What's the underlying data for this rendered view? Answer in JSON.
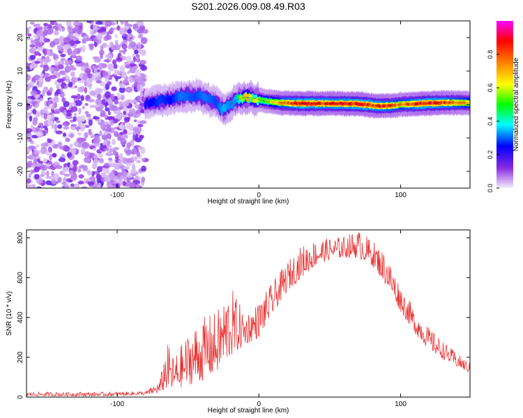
{
  "title": "S201.2026.009.08.49.R03",
  "chart_data": [
    {
      "type": "heatmap",
      "xlabel": "Height of straight line (km)",
      "ylabel": "Frequency (Hz)",
      "xlim": [
        -164,
        149
      ],
      "ylim": [
        -25,
        25
      ],
      "xticks": [
        "-100",
        "0",
        "100"
      ],
      "yticks": [
        "-20",
        "-10",
        "0",
        "10",
        "20"
      ],
      "colorbar": {
        "label": "Normalized spectral amplitude",
        "ticks": [
          "0.0",
          "0.2",
          "0.4",
          "0.6",
          "0.8"
        ],
        "range": [
          0,
          1
        ],
        "colors": [
          "#e0d0f8",
          "#8a2be2",
          "#0000ff",
          "#00ffff",
          "#00ff00",
          "#ffff00",
          "#ff8000",
          "#ff0000",
          "#ff00ff"
        ]
      },
      "noise_region": {
        "x": [
          -164,
          -80
        ],
        "y": [
          -25,
          25
        ],
        "amplitude": [
          0.0,
          0.25
        ]
      },
      "ridge": [
        {
          "x": -80,
          "y": 0.5,
          "a": 0.35
        },
        {
          "x": -70,
          "y": 1.0,
          "a": 0.45
        },
        {
          "x": -62,
          "y": 1.8,
          "a": 0.4
        },
        {
          "x": -55,
          "y": 2.5,
          "a": 0.5
        },
        {
          "x": -45,
          "y": 2.8,
          "a": 0.45
        },
        {
          "x": -38,
          "y": 2.0,
          "a": 0.5
        },
        {
          "x": -30,
          "y": 0.5,
          "a": 0.45
        },
        {
          "x": -25,
          "y": -1.5,
          "a": 0.55
        },
        {
          "x": -20,
          "y": 0.0,
          "a": 0.5
        },
        {
          "x": -15,
          "y": 1.5,
          "a": 0.55
        },
        {
          "x": -10,
          "y": 2.2,
          "a": 0.7
        },
        {
          "x": -5,
          "y": 2.0,
          "a": 0.65
        },
        {
          "x": 0,
          "y": 1.5,
          "a": 0.6
        },
        {
          "x": 5,
          "y": 1.0,
          "a": 0.55
        },
        {
          "x": 15,
          "y": 0.5,
          "a": 0.75
        },
        {
          "x": 30,
          "y": 0.3,
          "a": 0.9
        },
        {
          "x": 50,
          "y": 0.3,
          "a": 0.85
        },
        {
          "x": 70,
          "y": 0.2,
          "a": 0.9
        },
        {
          "x": 85,
          "y": -0.5,
          "a": 0.85
        },
        {
          "x": 95,
          "y": -0.3,
          "a": 0.8
        },
        {
          "x": 100,
          "y": 0.0,
          "a": 0.75
        },
        {
          "x": 115,
          "y": 0.3,
          "a": 0.9
        },
        {
          "x": 130,
          "y": 0.5,
          "a": 0.85
        },
        {
          "x": 149,
          "y": 0.5,
          "a": 0.7
        }
      ]
    },
    {
      "type": "line",
      "xlabel": "Height of straight line (km)",
      "ylabel": "SNR (10 * v/v)",
      "xlim": [
        -164,
        149
      ],
      "ylim": [
        0,
        840
      ],
      "xticks": [
        "-100",
        "0",
        "100"
      ],
      "yticks": [
        "0",
        "200",
        "400",
        "600",
        "800"
      ],
      "series": [
        {
          "color": "#e83030",
          "envelope": {
            "x": [
              -164,
              -140,
              -110,
              -80,
              -70,
              -65,
              -60,
              -50,
              -40,
              -30,
              -20,
              -10,
              0,
              10,
              20,
              30,
              40,
              50,
              60,
              70,
              80,
              90,
              100,
              110,
              120,
              130,
              140,
              149
            ],
            "min": [
              5,
              5,
              5,
              10,
              20,
              40,
              30,
              60,
              80,
              120,
              200,
              260,
              300,
              420,
              530,
              600,
              660,
              690,
              700,
              700,
              660,
              560,
              430,
              320,
              240,
              190,
              150,
              120
            ],
            "max": [
              25,
              25,
              25,
              30,
              80,
              280,
              200,
              320,
              400,
              430,
              560,
              420,
              480,
              580,
              680,
              760,
              790,
              800,
              810,
              840,
              790,
              720,
              560,
              440,
              350,
              280,
              220,
              170
            ]
          }
        }
      ]
    }
  ]
}
